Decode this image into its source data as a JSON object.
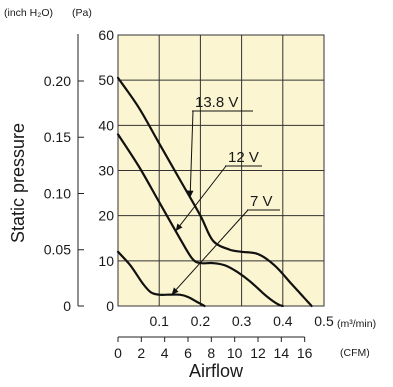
{
  "chart_data": {
    "type": "line",
    "units": {
      "left_outer": "(inch H₂O)",
      "left_inner": "(Pa)",
      "x_top": "(m³/min)",
      "x_bottom": "(CFM)"
    },
    "ylabel": "Static pressure",
    "xlabel": "Airflow",
    "y_pa": {
      "range": [
        0,
        60
      ],
      "ticks": [
        "0",
        "10",
        "20",
        "30",
        "40",
        "50",
        "60"
      ]
    },
    "y_inh2o": {
      "ticks": [
        {
          "value": 0,
          "label": "0"
        },
        {
          "value": 0.05,
          "label": "0.05"
        },
        {
          "value": 0.1,
          "label": "0.10"
        },
        {
          "value": 0.15,
          "label": "0.15"
        },
        {
          "value": 0.2,
          "label": "0.20"
        }
      ]
    },
    "x_m3min": {
      "range": [
        0,
        0.5
      ],
      "ticks": [
        {
          "value": 0.1,
          "label": "0.1"
        },
        {
          "value": 0.2,
          "label": "0.2"
        },
        {
          "value": 0.3,
          "label": "0.3"
        },
        {
          "value": 0.4,
          "label": "0.4"
        },
        {
          "value": 0.5,
          "label": "0.5"
        }
      ]
    },
    "x_cfm": {
      "ticks": [
        "0",
        "2",
        "4",
        "6",
        "8",
        "10",
        "12",
        "14",
        "16"
      ]
    },
    "grid": true,
    "series": [
      {
        "name": "13.8 V",
        "x": [
          0,
          0.05,
          0.1,
          0.15,
          0.2,
          0.23,
          0.27,
          0.3,
          0.34,
          0.38,
          0.42,
          0.44,
          0.46,
          0.47
        ],
        "y": [
          50.5,
          44,
          36,
          28,
          20,
          14.5,
          12.5,
          12,
          11.5,
          9,
          5,
          3,
          1,
          0
        ]
      },
      {
        "name": "12 V",
        "x": [
          0,
          0.05,
          0.1,
          0.15,
          0.18,
          0.2,
          0.23,
          0.26,
          0.29,
          0.32,
          0.35,
          0.37,
          0.39,
          0.4
        ],
        "y": [
          38,
          31,
          23,
          15,
          10.5,
          9.5,
          9.5,
          9,
          7.5,
          5.5,
          3,
          1.5,
          0.3,
          0
        ]
      },
      {
        "name": "7 V",
        "x": [
          0,
          0.03,
          0.06,
          0.08,
          0.1,
          0.12,
          0.15,
          0.17,
          0.19,
          0.2,
          0.21
        ],
        "y": [
          12,
          9,
          5,
          3,
          2.5,
          2.5,
          2.5,
          2,
          1,
          0.5,
          0
        ]
      }
    ]
  }
}
